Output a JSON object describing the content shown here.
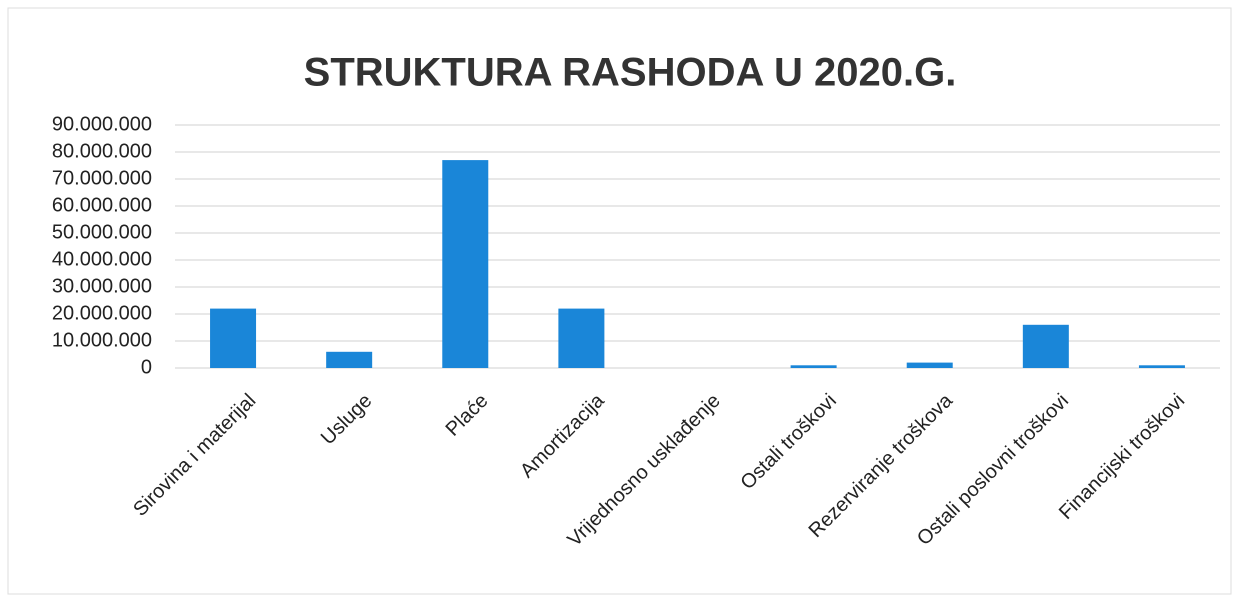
{
  "chart_data": {
    "type": "bar",
    "title": "STRUKTURA RASHODA U 2020.G.",
    "categories": [
      "Sirovina i materijal",
      "Usluge",
      "Plaće",
      "Amortizacija",
      "Vrijednosno usklađenje",
      "Ostali troškovi",
      "Rezerviranje troškova",
      "Ostali poslovni troškovi",
      "Financijski troškovi"
    ],
    "values": [
      22000000,
      6000000,
      77000000,
      22000000,
      0,
      1000000,
      2000000,
      16000000,
      1000000
    ],
    "color": "#1a86d8",
    "ylim": [
      0,
      90000000
    ],
    "yticks": [
      0,
      {
        "value": 10000000,
        "label": "10.000.000"
      },
      {
        "value": 20000000,
        "label": "20.000.000"
      },
      {
        "value": 30000000,
        "label": "30.000.000"
      },
      {
        "value": 40000000,
        "label": "40.000.000"
      },
      {
        "value": 50000000,
        "label": "50.000.000"
      },
      {
        "value": 60000000,
        "label": "60.000.000"
      },
      {
        "value": 70000000,
        "label": "70.000.000"
      },
      {
        "value": 80000000,
        "label": "80.000.000"
      },
      {
        "value": 90000000,
        "label": "90.000.000"
      }
    ],
    "grid": true
  }
}
